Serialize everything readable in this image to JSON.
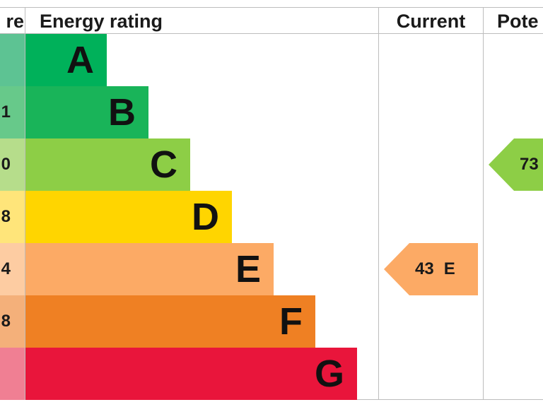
{
  "headers": {
    "score": "re",
    "rating": "Energy rating",
    "current": "Current",
    "potential": "Pote"
  },
  "chart_data": {
    "type": "bar",
    "title": "",
    "bands": [
      {
        "letter": "A",
        "score_label": "",
        "color": "#00b15a",
        "score_color": "#5dc393"
      },
      {
        "letter": "B",
        "score_label": "1",
        "color": "#19b459",
        "score_color": "#67c98a"
      },
      {
        "letter": "C",
        "score_label": "0",
        "color": "#8dce46",
        "score_color": "#b6dd8b"
      },
      {
        "letter": "D",
        "score_label": "8",
        "color": "#ffd500",
        "score_color": "#ffe57a"
      },
      {
        "letter": "E",
        "score_label": "4",
        "color": "#fcaa65",
        "score_color": "#fdcca2"
      },
      {
        "letter": "F",
        "score_label": "8",
        "color": "#ef8023",
        "score_color": "#f4b07a"
      },
      {
        "letter": "G",
        "score_label": "",
        "color": "#e9153b",
        "score_color": "#f07f93"
      }
    ],
    "current": {
      "value": 43,
      "band": "E",
      "color": "#fcaa65"
    },
    "potential": {
      "value": 73,
      "band": "C",
      "color": "#8dce46"
    }
  }
}
